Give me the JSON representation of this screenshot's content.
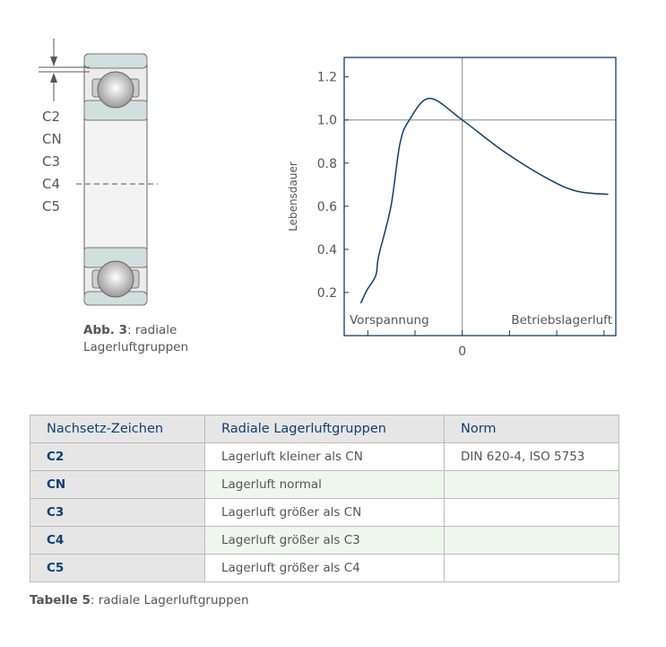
{
  "figure": {
    "clearance_labels": [
      "C2",
      "CN",
      "C3",
      "C4",
      "C5"
    ],
    "caption_bold": "Abb. 3",
    "caption_text": ":  radiale",
    "caption_text2": "Lagerluftgruppen"
  },
  "chart_data": {
    "type": "line",
    "ylabel": "Lebensdauer",
    "ylim": [
      0,
      1.29
    ],
    "xlim": [
      -2.5,
      3.25
    ],
    "yticks": [
      0.2,
      0.4,
      0.6,
      0.8,
      1.0,
      1.2
    ],
    "ytick_labels": [
      "0.2",
      "0.4",
      "0.6",
      "0.8",
      "1.0",
      "1.2"
    ],
    "xticks": [
      -2,
      -1,
      0,
      1,
      2,
      3
    ],
    "xtick_label_zero": "0",
    "region_left_label": "Vorspannung",
    "region_right_label": "Betriebslagerluft",
    "reference_line_y": 1.0,
    "grid": false,
    "series": [
      {
        "x": [
          -2.15,
          -2.02,
          -1.83,
          -1.77,
          -1.51,
          -1.32,
          -1.12,
          -0.69,
          0,
          0.84,
          1.79,
          2.42,
          3.09
        ],
        "y": [
          0.15,
          0.21,
          0.28,
          0.37,
          0.6,
          0.89,
          1.0,
          1.1,
          1.0,
          0.86,
          0.73,
          0.67,
          0.655
        ]
      }
    ],
    "colors": {
      "line": "#0f3e73",
      "axes": "#0f3e73",
      "ref": "#888888"
    }
  },
  "table": {
    "headers": [
      "Nachsetz-Zeichen",
      "Radiale Lagerluftgruppen",
      "Norm"
    ],
    "rows": [
      [
        "C2",
        "Lagerluft kleiner als CN",
        "DIN 620-4, ISO 5753"
      ],
      [
        "CN",
        "Lagerluft normal",
        ""
      ],
      [
        "C3",
        "Lagerluft größer als CN",
        ""
      ],
      [
        "C4",
        "Lagerluft größer als C3",
        ""
      ],
      [
        "C5",
        "Lagerluft größer als C4",
        ""
      ]
    ],
    "caption_bold": "Tabelle 5",
    "caption_text": ":  radiale Lagerluftgruppen"
  }
}
